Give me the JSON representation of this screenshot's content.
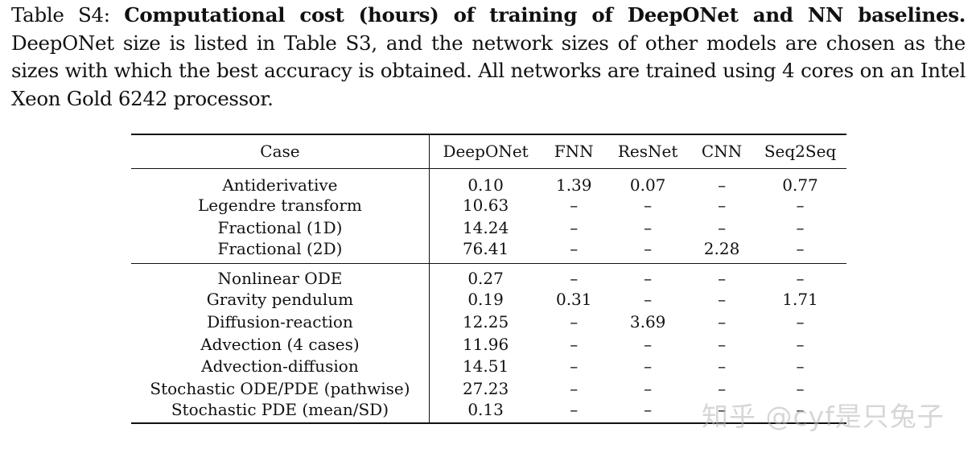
{
  "caption": {
    "label": "Table S4:",
    "bold": "Computational cost (hours) of training of DeepONet and NN baselines.",
    "text": "DeepONet size is listed in Table S3, and the network sizes of other models are chosen as the sizes with which the best accuracy is obtained. All networks are trained using 4 cores on an Intel Xeon Gold 6242 processor."
  },
  "table": {
    "headers": [
      "Case",
      "DeepONet",
      "FNN",
      "ResNet",
      "CNN",
      "Seq2Seq"
    ],
    "group1": [
      [
        "Antiderivative",
        "0.10",
        "1.39",
        "0.07",
        "–",
        "0.77"
      ],
      [
        "Legendre transform",
        "10.63",
        "–",
        "–",
        "–",
        "–"
      ],
      [
        "Fractional (1D)",
        "14.24",
        "–",
        "–",
        "–",
        "–"
      ],
      [
        "Fractional (2D)",
        "76.41",
        "–",
        "–",
        "2.28",
        "–"
      ]
    ],
    "group2": [
      [
        "Nonlinear ODE",
        "0.27",
        "–",
        "–",
        "–",
        "–"
      ],
      [
        "Gravity pendulum",
        "0.19",
        "0.31",
        "–",
        "–",
        "1.71"
      ],
      [
        "Diffusion-reaction",
        "12.25",
        "–",
        "3.69",
        "–",
        "–"
      ],
      [
        "Advection (4 cases)",
        "11.96",
        "–",
        "–",
        "–",
        "–"
      ],
      [
        "Advection-diffusion",
        "14.51",
        "–",
        "–",
        "–",
        "–"
      ],
      [
        "Stochastic ODE/PDE (pathwise)",
        "27.23",
        "–",
        "–",
        "–",
        "–"
      ],
      [
        "Stochastic PDE (mean/SD)",
        "0.13",
        "–",
        "–",
        "–",
        "–"
      ]
    ]
  },
  "watermark": "知乎 @cyf是只兔子"
}
